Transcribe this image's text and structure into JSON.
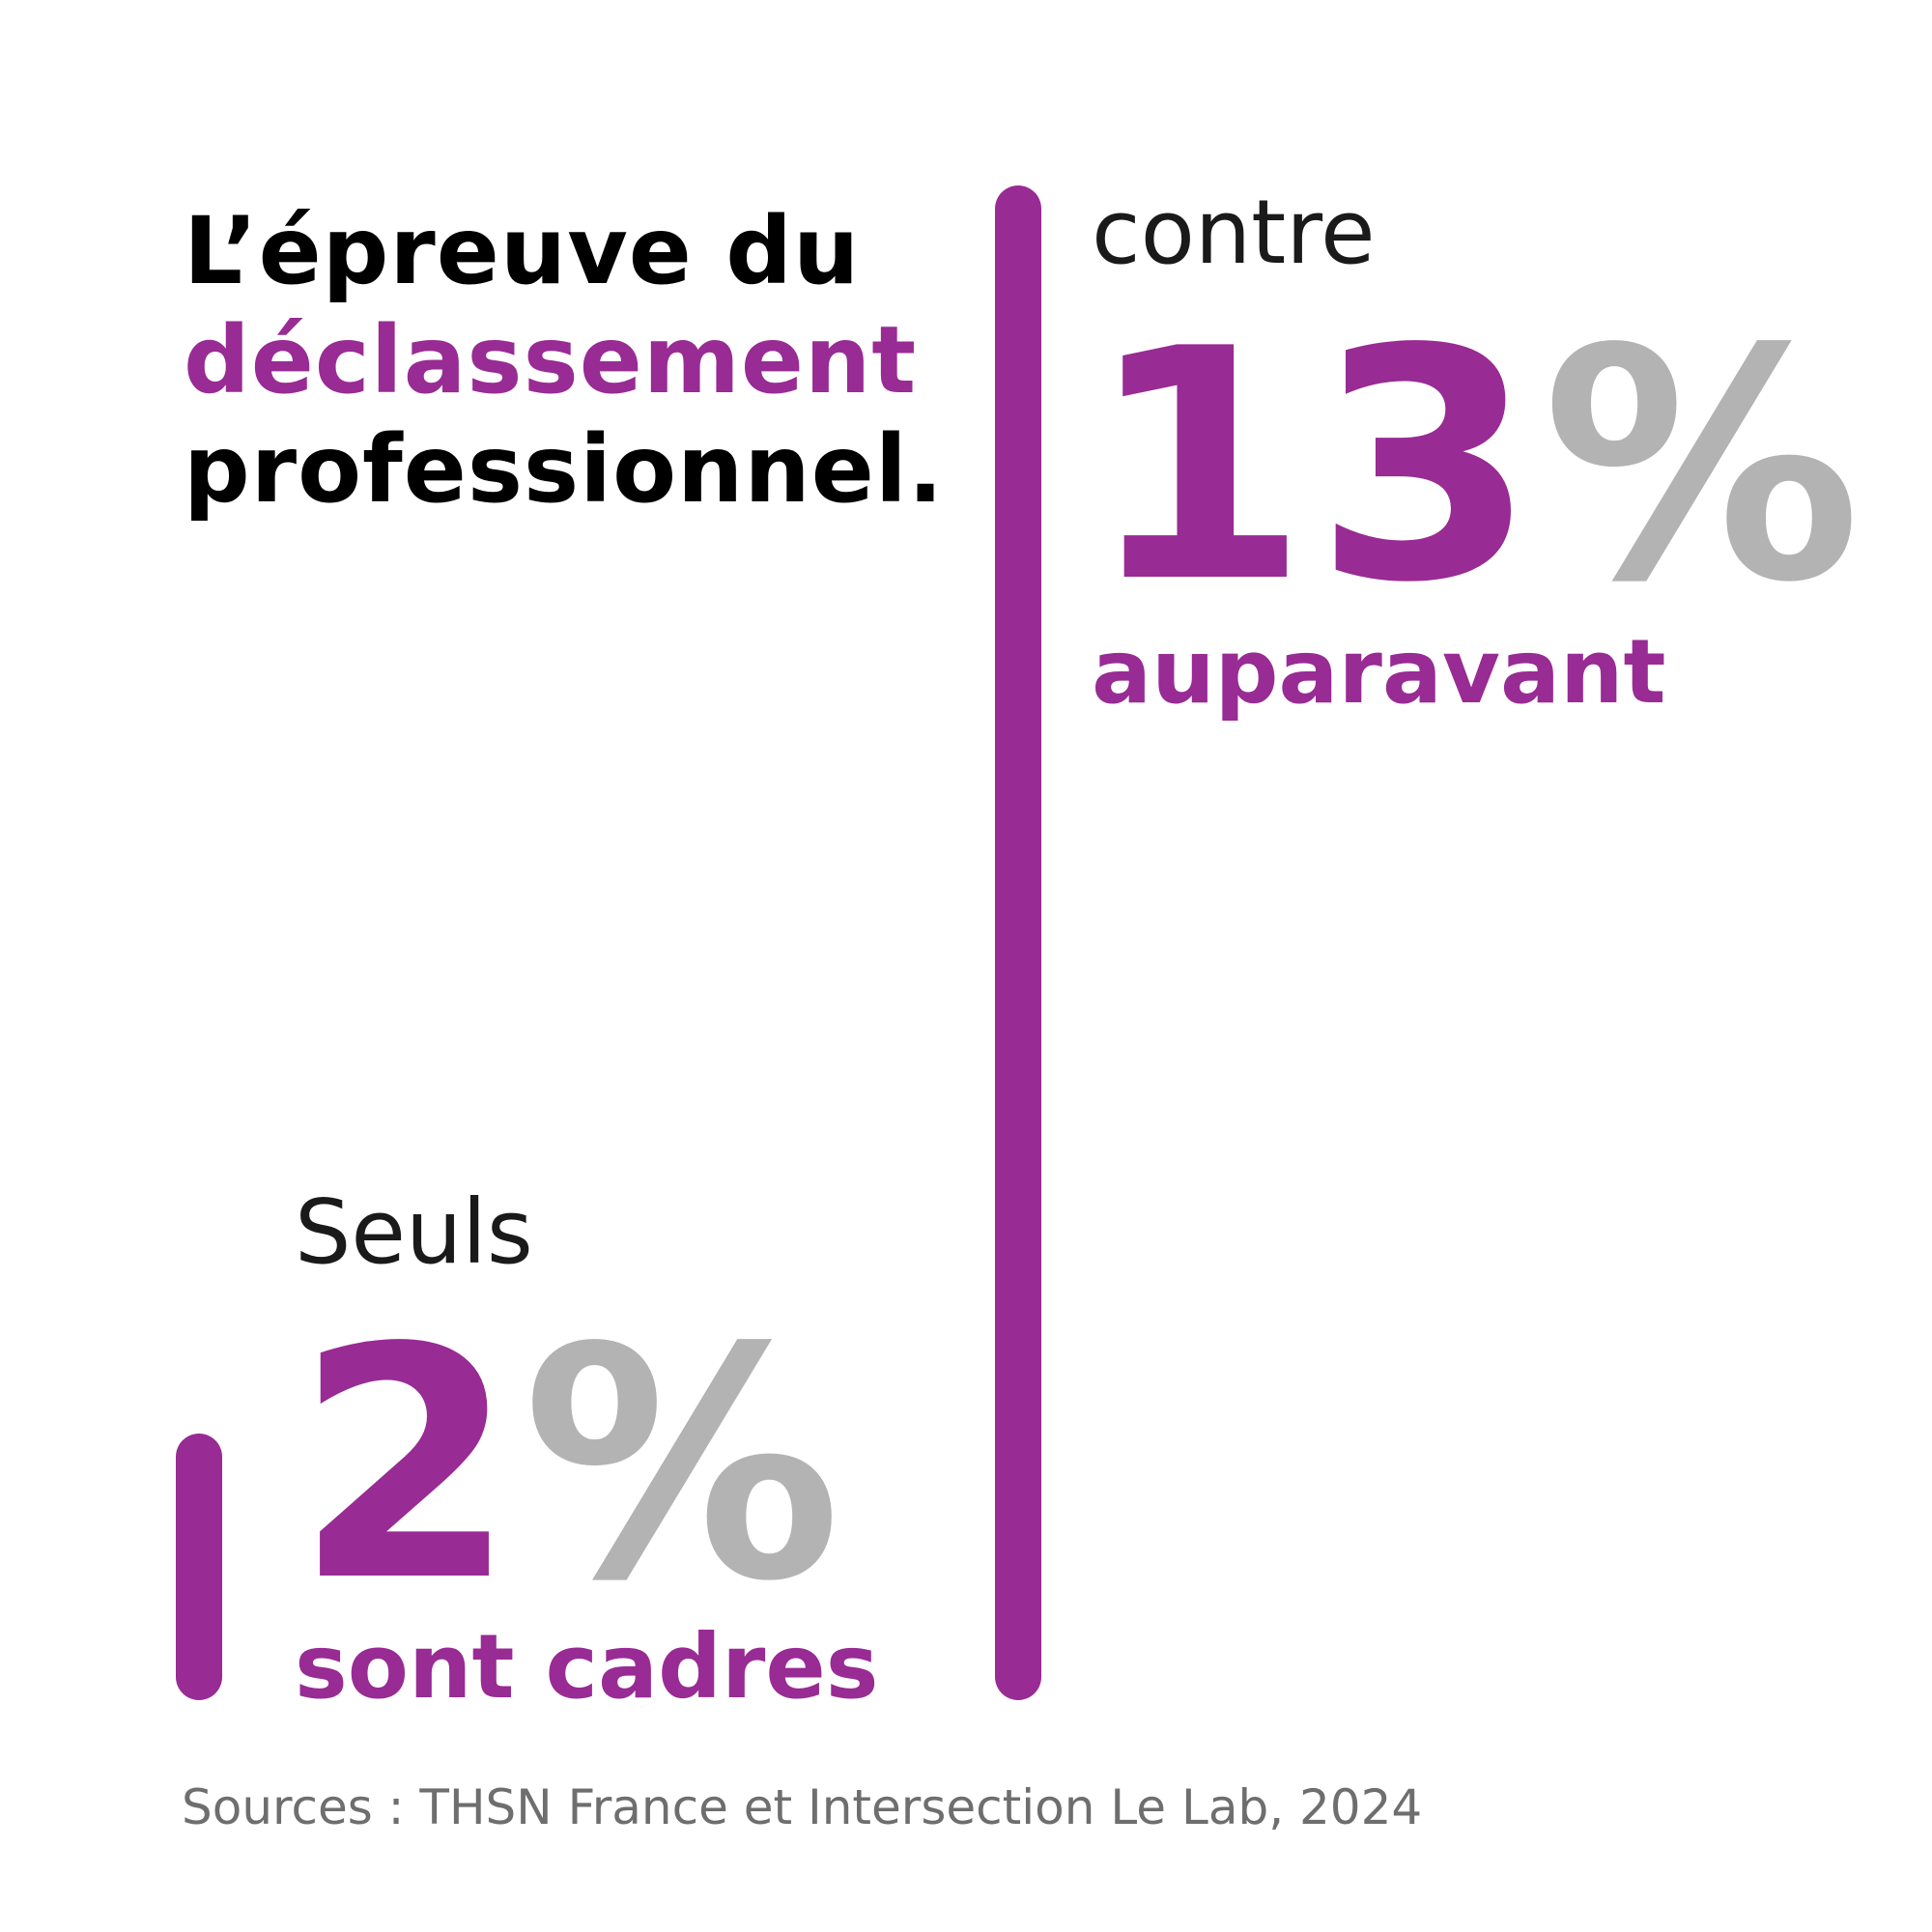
{
  "title": {
    "line1": "L’épreuve du",
    "line2": "déclassement",
    "line3": "professionnel."
  },
  "colors": {
    "accent": "#982b94",
    "percent_sign": "#b3b3b3",
    "text": "#000000",
    "source": "#6e6e6e"
  },
  "chart_data": {
    "type": "table",
    "title": "L’épreuve du déclassement professionnel.",
    "stats": [
      {
        "intro": "Seuls",
        "value": 2,
        "value_label": "2",
        "unit": "%",
        "caption": "sont cadres"
      },
      {
        "intro": "contre",
        "value": 13,
        "value_label": "13",
        "unit": "%",
        "caption": "auparavant"
      }
    ],
    "source": "Sources : THSN France et Intersection Le Lab, 2024"
  }
}
